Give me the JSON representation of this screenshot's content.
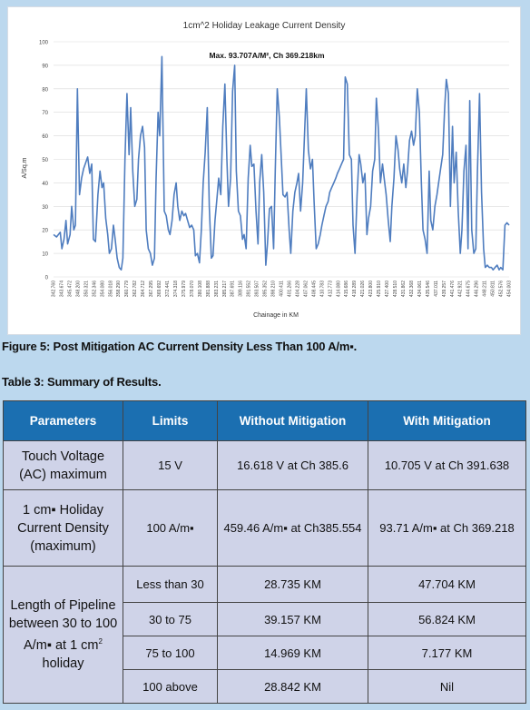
{
  "figure": {
    "caption": "Figure 5: Post Mitigation AC Current Density Less Than 100 A/m▪."
  },
  "table_caption": "Table 3: Summary of Results.",
  "table": {
    "headers": [
      "Parameters",
      "Limits",
      "Without Mitigation",
      "With Mitigation"
    ],
    "touch_voltage": {
      "param": "Touch Voltage (AC) maximum",
      "limit": "15 V",
      "without": "16.618 V at Ch 385.6",
      "with": "10.705 V at Ch 391.638"
    },
    "current_density": {
      "param": "1 cm▪ Holiday Current Density (maximum)",
      "limit": "100 A/m▪",
      "without": "459.46 A/m▪ at Ch385.554",
      "with": "93.71 A/m▪ at Ch 369.218"
    },
    "length": {
      "param_line1": "Length of Pipeline between 30 to 100 A/m▪ at 1 cm",
      "param_sup": "2",
      "param_line2": " holiday",
      "rows": [
        {
          "limit": "Less than 30",
          "without": "28.735 KM",
          "with": "47.704 KM"
        },
        {
          "limit": "30 to 75",
          "without": "39.157 KM",
          "with": "56.824 KM"
        },
        {
          "limit": "75 to 100",
          "without": "14.969 KM",
          "with": "7.177 KM"
        },
        {
          "limit": "100 above",
          "without": "28.842 KM",
          "with": "Nil"
        }
      ]
    }
  },
  "chart_data": {
    "type": "line",
    "title": "1cm^2 Holiday Leakage Current Density",
    "annotation": "Max. 93.707A/M², Ch 369.218km",
    "xlabel": "Chainage in KM",
    "ylabel": "A/Sq.m",
    "ylim": [
      0,
      100
    ],
    "yticks": [
      0,
      10,
      20,
      30,
      40,
      50,
      60,
      70,
      80,
      90,
      100
    ],
    "xlim": [
      342.76,
      454.03
    ],
    "xtick_labels": [
      "342.760",
      "343.674",
      "345.472",
      "348.200",
      "350.321",
      "352.346",
      "354.080",
      "356.018",
      "358.290",
      "360.779",
      "362.782",
      "364.712",
      "367.295",
      "369.692",
      "372.441",
      "374.318",
      "375.979",
      "378.070",
      "380.108",
      "381.888",
      "383.231",
      "385.217",
      "387.691",
      "389.116",
      "391.552",
      "393.507",
      "395.352",
      "398.210",
      "400.411",
      "401.266",
      "404.228",
      "407.062",
      "408.445",
      "410.783",
      "412.773",
      "414.080",
      "415.686",
      "418.289",
      "421.026",
      "423.800",
      "425.910",
      "427.400",
      "428.510",
      "431.862",
      "432.368",
      "434.061",
      "435.546",
      "437.011",
      "439.257",
      "441.476",
      "442.921",
      "444.675",
      "446.296",
      "448.211",
      "450.811",
      "452.576",
      "454.003"
    ],
    "series": [
      {
        "x": [
          342.76,
          343.5,
          344.4,
          344.8,
          345.3,
          345.8,
          346.2,
          346.8,
          347.2,
          347.7,
          348.1,
          348.6,
          349.1,
          349.6,
          350.1,
          350.5,
          351.1,
          351.6,
          352.1,
          352.5,
          353.0,
          353.6,
          354.1,
          354.6,
          355.0,
          355.5,
          356.0,
          356.4,
          356.9,
          357.4,
          357.8,
          358.3,
          358.8,
          359.3,
          359.7,
          360.2,
          360.7,
          361.2,
          361.6,
          362.1,
          362.6,
          363.1,
          363.5,
          364.0,
          364.5,
          365.0,
          365.4,
          365.9,
          366.4,
          366.9,
          367.4,
          367.8,
          368.3,
          368.7,
          369.218,
          369.8,
          370.3,
          370.8,
          371.2,
          371.7,
          372.2,
          372.7,
          373.1,
          373.6,
          374.1,
          374.6,
          375.0,
          375.5,
          376.0,
          376.5,
          377.0,
          377.4,
          377.9,
          378.4,
          378.9,
          379.3,
          379.8,
          380.3,
          380.8,
          381.3,
          381.7,
          382.2,
          382.7,
          383.1,
          383.6,
          384.1,
          384.6,
          385.1,
          385.5,
          386.0,
          386.5,
          387.0,
          387.4,
          387.9,
          388.4,
          388.9,
          389.3,
          389.8,
          390.3,
          390.8,
          391.2,
          391.7,
          392.2,
          392.7,
          393.1,
          393.6,
          394.1,
          394.6,
          395.0,
          395.5,
          396.0,
          396.5,
          396.9,
          397.4,
          397.9,
          398.4,
          398.8,
          399.3,
          399.8,
          400.3,
          400.7,
          401.2,
          401.7,
          402.2,
          402.6,
          403.1,
          403.6,
          404.1,
          404.5,
          405.0,
          405.5,
          406.0,
          406.4,
          406.9,
          407.4,
          407.9,
          408.3,
          408.8,
          409.3,
          409.8,
          410.2,
          410.7,
          411.2,
          411.7,
          412.1,
          412.6,
          413.1,
          413.6,
          414.0,
          414.5,
          415.0,
          415.5,
          415.9,
          416.4,
          416.9,
          417.4,
          417.8,
          418.3,
          418.8,
          419.3,
          419.7,
          420.2,
          420.7,
          421.2,
          421.6,
          422.1,
          422.6,
          423.1,
          423.5,
          424.0,
          424.5,
          425.0,
          425.4,
          425.9,
          426.4,
          426.9,
          427.3,
          427.8,
          428.3,
          428.8,
          429.2,
          429.7,
          430.2,
          430.7,
          431.1,
          431.6,
          432.1,
          432.6,
          433.0,
          433.5,
          434.0,
          434.5,
          434.9,
          435.4,
          435.9,
          436.4,
          436.8,
          437.3,
          437.8,
          438.3,
          438.7,
          439.2,
          439.7,
          440.2,
          440.6,
          441.1,
          441.6,
          442.1,
          442.5,
          443.0,
          443.5,
          444.0,
          444.4,
          444.9,
          445.4,
          445.9,
          446.3,
          446.8,
          447.3,
          447.8,
          448.2,
          448.7,
          449.2,
          449.7,
          450.1,
          450.6,
          451.1,
          451.6,
          452.0,
          452.5,
          453.0,
          453.5,
          454.03
        ],
        "y": [
          18,
          17,
          19,
          12,
          16,
          24,
          14,
          18,
          30,
          20,
          22,
          80,
          35,
          42,
          46,
          48,
          51,
          44,
          48,
          16,
          15,
          35,
          45,
          38,
          40,
          25,
          18,
          10,
          12,
          22,
          16,
          8,
          4,
          3,
          8,
          50,
          78,
          52,
          72,
          45,
          30,
          33,
          50,
          60,
          64,
          55,
          20,
          12,
          10,
          5,
          8,
          42,
          70,
          60,
          93.707,
          28,
          26,
          20,
          18,
          24,
          35,
          40,
          30,
          24,
          28,
          26,
          27,
          24,
          21,
          22,
          20,
          9,
          10,
          6,
          21,
          40,
          53,
          72,
          30,
          8,
          9,
          24,
          34,
          42,
          35,
          64,
          82,
          50,
          30,
          42,
          79,
          90,
          45,
          28,
          26,
          16,
          18,
          12,
          42,
          56,
          47,
          48,
          28,
          14,
          40,
          52,
          36,
          5,
          14,
          29,
          30,
          12,
          45,
          80,
          68,
          50,
          35,
          34,
          36,
          20,
          10,
          28,
          36,
          40,
          44,
          28,
          40,
          62,
          80,
          54,
          46,
          50,
          32,
          12,
          14,
          18,
          22,
          26,
          30,
          32,
          36,
          38,
          40,
          42,
          44,
          46,
          48,
          50,
          85,
          82,
          52,
          50,
          22,
          10,
          35,
          52,
          48,
          40,
          44,
          18,
          25,
          30,
          45,
          50,
          76,
          63,
          40,
          48,
          42,
          35,
          24,
          15,
          30,
          42,
          60,
          54,
          46,
          40,
          48,
          38,
          45,
          58,
          62,
          56,
          60,
          80,
          70,
          40,
          20,
          16,
          10,
          45,
          24,
          20,
          30,
          35,
          40,
          46,
          52,
          72,
          84,
          78,
          30,
          64,
          40,
          53,
          28,
          10,
          20,
          45,
          56,
          12,
          75,
          20,
          10,
          12,
          45,
          78,
          36,
          12,
          4,
          5,
          4,
          4,
          3,
          4,
          5,
          3,
          4,
          3,
          22,
          23,
          22
        ]
      }
    ]
  }
}
